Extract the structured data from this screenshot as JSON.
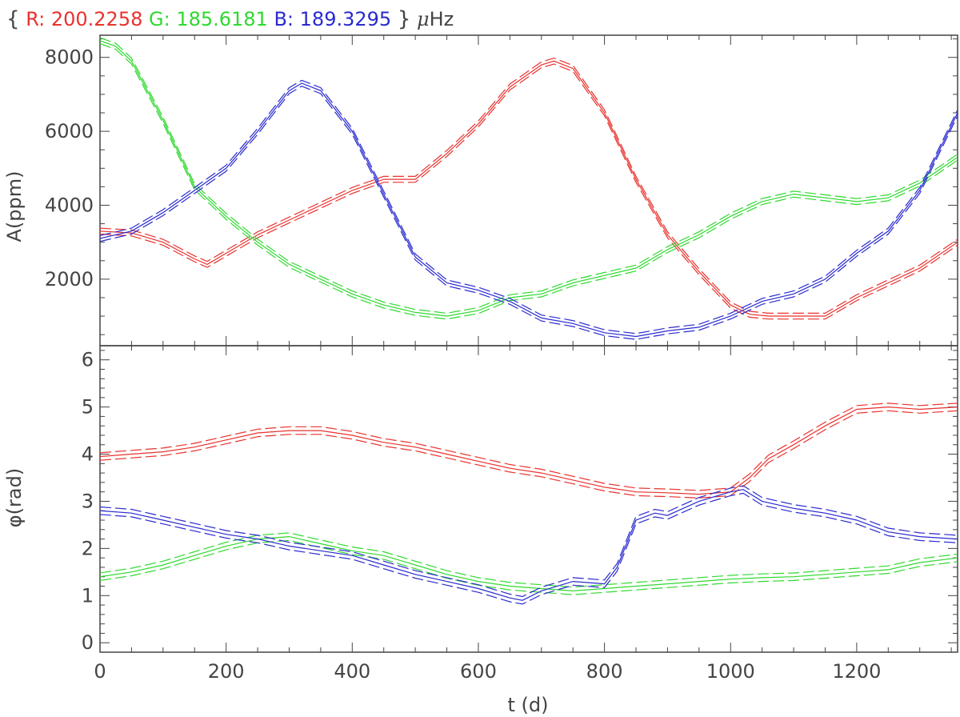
{
  "header": {
    "open_brace": "{",
    "close_brace": "}",
    "r_label": "R: 200.2258",
    "g_label": "G: 185.6181",
    "b_label": "B: 189.3295",
    "unit_mu": "μ",
    "unit_hz": "Hz"
  },
  "colors": {
    "red": "#e8322e",
    "green": "#2fd92f",
    "blue": "#2a2ad0",
    "axis": "#444444"
  },
  "chart_data": [
    {
      "type": "line",
      "panel": "top",
      "xlabel": "",
      "ylabel": "A(ppm)",
      "xlim": [
        0,
        1360
      ],
      "ylim": [
        200,
        8600
      ],
      "yticks": [
        2000,
        4000,
        6000,
        8000
      ],
      "grid": false,
      "band_offset": 80,
      "series": [
        {
          "name": "R",
          "color": "red",
          "x": [
            0,
            50,
            100,
            150,
            170,
            200,
            250,
            300,
            350,
            400,
            450,
            500,
            550,
            600,
            650,
            700,
            720,
            750,
            800,
            850,
            900,
            950,
            1000,
            1030,
            1060,
            1100,
            1150,
            1200,
            1250,
            1300,
            1360
          ],
          "y": [
            3300,
            3250,
            3000,
            2550,
            2400,
            2700,
            3200,
            3600,
            4000,
            4400,
            4700,
            4700,
            5400,
            6200,
            7200,
            7800,
            7900,
            7700,
            6500,
            4700,
            3200,
            2200,
            1300,
            1050,
            1000,
            1000,
            1000,
            1500,
            1900,
            2300,
            3000
          ]
        },
        {
          "name": "G",
          "color": "green",
          "x": [
            0,
            25,
            50,
            100,
            150,
            200,
            250,
            300,
            350,
            400,
            450,
            500,
            550,
            600,
            650,
            700,
            750,
            800,
            850,
            900,
            950,
            1000,
            1050,
            1100,
            1150,
            1200,
            1250,
            1300,
            1360
          ],
          "y": [
            8450,
            8300,
            7900,
            6300,
            4500,
            3700,
            3000,
            2400,
            2000,
            1600,
            1300,
            1100,
            1000,
            1150,
            1500,
            1600,
            1900,
            2100,
            2300,
            2800,
            3200,
            3700,
            4100,
            4300,
            4200,
            4100,
            4200,
            4600,
            5300
          ]
        },
        {
          "name": "B",
          "color": "blue",
          "x": [
            0,
            50,
            100,
            150,
            200,
            250,
            300,
            320,
            350,
            400,
            450,
            500,
            550,
            600,
            650,
            700,
            750,
            800,
            850,
            900,
            950,
            1000,
            1050,
            1100,
            1150,
            1200,
            1250,
            1300,
            1360
          ],
          "y": [
            3100,
            3300,
            3800,
            4400,
            5000,
            6000,
            7100,
            7300,
            7100,
            6000,
            4300,
            2600,
            1900,
            1700,
            1400,
            950,
            800,
            550,
            450,
            600,
            700,
            1000,
            1400,
            1600,
            2000,
            2700,
            3300,
            4400,
            6500
          ]
        }
      ]
    },
    {
      "type": "line",
      "panel": "bottom",
      "xlabel": "t (d)",
      "ylabel": "φ(rad)",
      "xlim": [
        0,
        1360
      ],
      "ylim": [
        -0.2,
        6.3
      ],
      "xticks": [
        0,
        200,
        400,
        600,
        800,
        1000,
        1200
      ],
      "yticks": [
        0,
        1,
        2,
        3,
        4,
        5,
        6
      ],
      "grid": false,
      "band_offset": 0.08,
      "series": [
        {
          "name": "R",
          "color": "red",
          "x": [
            0,
            50,
            100,
            150,
            200,
            250,
            300,
            350,
            400,
            450,
            500,
            550,
            600,
            650,
            700,
            750,
            800,
            850,
            900,
            950,
            1000,
            1030,
            1060,
            1100,
            1150,
            1200,
            1250,
            1300,
            1360
          ],
          "y": [
            3.95,
            4.0,
            4.05,
            4.15,
            4.3,
            4.45,
            4.5,
            4.5,
            4.4,
            4.25,
            4.15,
            4.0,
            3.85,
            3.7,
            3.6,
            3.45,
            3.3,
            3.2,
            3.18,
            3.15,
            3.2,
            3.5,
            3.9,
            4.2,
            4.6,
            4.95,
            5.0,
            4.95,
            5.0
          ]
        },
        {
          "name": "G",
          "color": "green",
          "x": [
            0,
            50,
            100,
            150,
            200,
            250,
            300,
            350,
            400,
            450,
            500,
            550,
            600,
            650,
            700,
            750,
            800,
            850,
            900,
            950,
            1000,
            1050,
            1100,
            1150,
            1200,
            1250,
            1300,
            1360
          ],
          "y": [
            1.4,
            1.5,
            1.65,
            1.85,
            2.05,
            2.2,
            2.25,
            2.1,
            1.95,
            1.85,
            1.65,
            1.45,
            1.3,
            1.2,
            1.15,
            1.1,
            1.15,
            1.2,
            1.25,
            1.3,
            1.35,
            1.38,
            1.4,
            1.45,
            1.5,
            1.55,
            1.7,
            1.8
          ]
        },
        {
          "name": "B",
          "color": "blue",
          "x": [
            0,
            50,
            100,
            150,
            200,
            250,
            300,
            350,
            400,
            450,
            500,
            550,
            600,
            650,
            670,
            700,
            750,
            800,
            820,
            850,
            880,
            900,
            950,
            1000,
            1020,
            1050,
            1100,
            1150,
            1200,
            1250,
            1300,
            1360
          ],
          "y": [
            2.8,
            2.75,
            2.6,
            2.45,
            2.3,
            2.2,
            2.05,
            1.95,
            1.85,
            1.65,
            1.45,
            1.3,
            1.15,
            0.95,
            0.9,
            1.1,
            1.3,
            1.25,
            1.6,
            2.6,
            2.75,
            2.7,
            3.0,
            3.2,
            3.25,
            3.0,
            2.85,
            2.75,
            2.6,
            2.35,
            2.25,
            2.2
          ]
        }
      ]
    }
  ]
}
